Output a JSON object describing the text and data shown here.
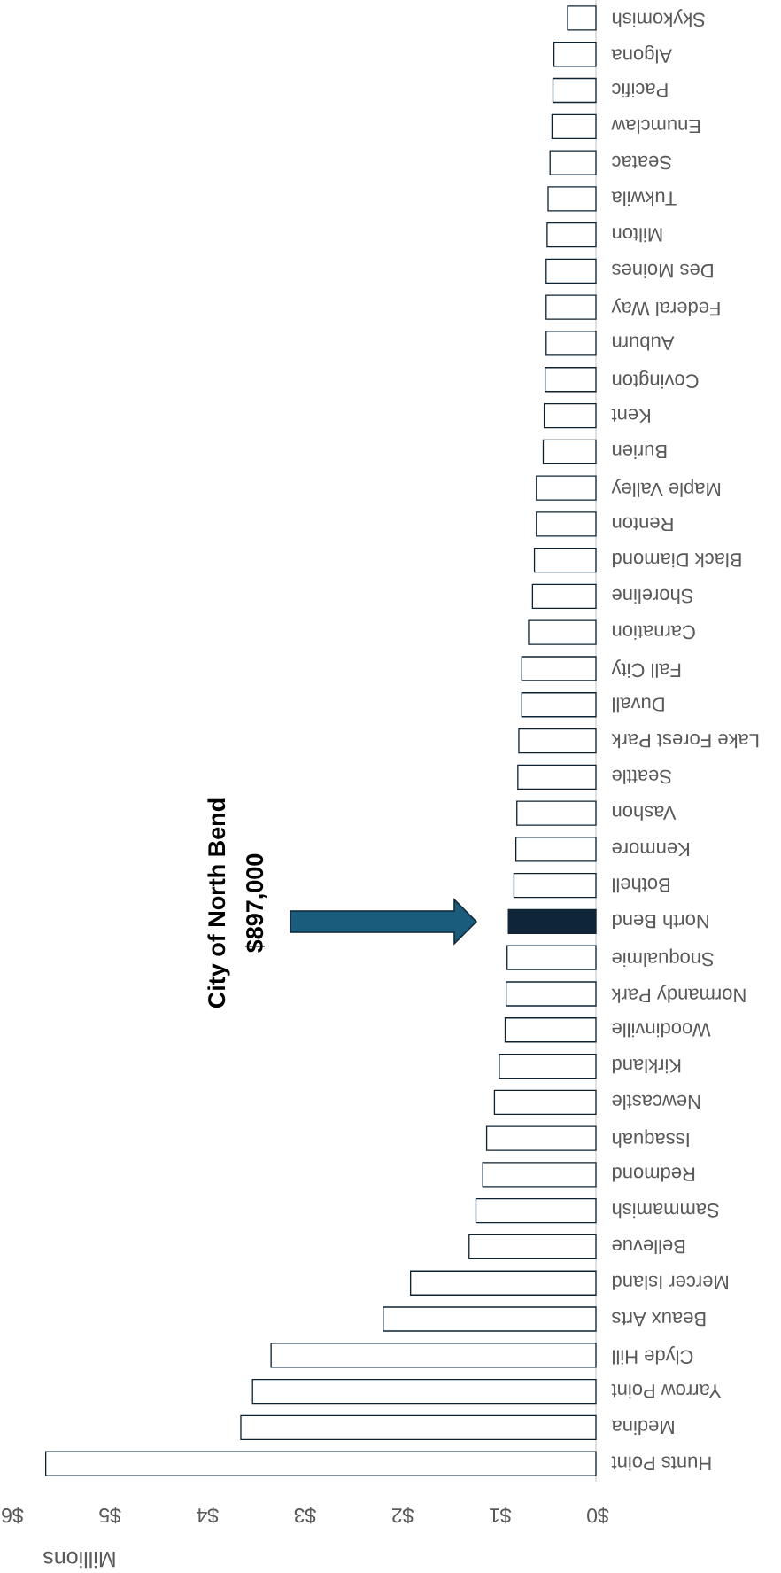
{
  "chart_data": {
    "type": "bar",
    "orientation": "horizontal",
    "xlabel": "Millions",
    "categories": [
      "Skykomish",
      "Algona",
      "Pacific",
      "Enumclaw",
      "Seatac",
      "Tukwila",
      "Milton",
      "Des Moines",
      "Federal Way",
      "Auburn",
      "Covington",
      "Kent",
      "Burien",
      "Maple Valley",
      "Renton",
      "Black Diamond",
      "Shoreline",
      "Carnation",
      "Fall City",
      "Duvall",
      "Lake Forest Park",
      "Seattle",
      "Vashon",
      "Kenmore",
      "Bothell",
      "North Bend",
      "Snoqualmie",
      "Normandy Park",
      "Woodinville",
      "Kirkland",
      "Newcastle",
      "Issaquah",
      "Redmond",
      "Sammamish",
      "Bellevue",
      "Mercer Island",
      "Beaux Arts",
      "Clyde Hill",
      "Yarrow Point",
      "Medina",
      "Hunts Point"
    ],
    "values": [
      0.29,
      0.43,
      0.44,
      0.45,
      0.47,
      0.49,
      0.5,
      0.51,
      0.51,
      0.51,
      0.52,
      0.53,
      0.54,
      0.61,
      0.61,
      0.63,
      0.65,
      0.69,
      0.76,
      0.76,
      0.79,
      0.8,
      0.81,
      0.82,
      0.84,
      0.897,
      0.91,
      0.92,
      0.93,
      0.99,
      1.04,
      1.12,
      1.16,
      1.23,
      1.3,
      1.9,
      2.18,
      3.33,
      3.52,
      3.64,
      5.64
    ],
    "colors": [
      "#ffffff",
      "#ffffff",
      "#ffffff",
      "#ffffff",
      "#ffffff",
      "#ffffff",
      "#ffffff",
      "#ffffff",
      "#ffffff",
      "#ffffff",
      "#ffffff",
      "#ffffff",
      "#ffffff",
      "#ffffff",
      "#ffffff",
      "#ffffff",
      "#ffffff",
      "#ffffff",
      "#ffffff",
      "#ffffff",
      "#ffffff",
      "#ffffff",
      "#ffffff",
      "#ffffff",
      "#ffffff",
      "#0f2539",
      "#ffffff",
      "#ffffff",
      "#ffffff",
      "#ffffff",
      "#ffffff",
      "#ffffff",
      "#ffffff",
      "#ffffff",
      "#ffffff",
      "#ffffff",
      "#ffffff",
      "#ffffff",
      "#ffffff",
      "#ffffff",
      "#ffffff"
    ],
    "xlim": [
      6,
      0
    ],
    "xticks": [
      {
        "value": 6,
        "label": "$6"
      },
      {
        "value": 5,
        "label": "$5"
      },
      {
        "value": 4,
        "label": "$4"
      },
      {
        "value": 3,
        "label": "$3"
      },
      {
        "value": 2,
        "label": "$2"
      },
      {
        "value": 1,
        "label": "$1"
      },
      {
        "value": 0,
        "label": "$0"
      }
    ],
    "annotations": [
      "City of North Bend",
      "$897,000"
    ]
  }
}
